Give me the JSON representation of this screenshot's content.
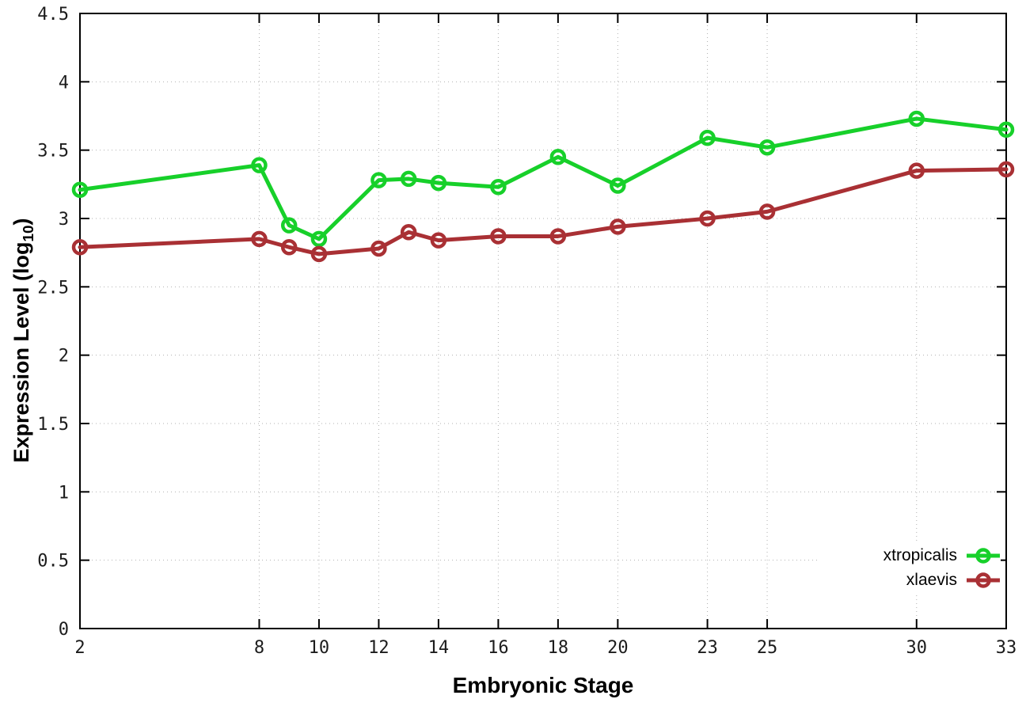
{
  "chart_data": {
    "type": "line",
    "title": "",
    "xlabel": "Embryonic Stage",
    "ylabel_main": "Expression Level (log",
    "ylabel_sub": "10",
    "ylabel_close": ")",
    "x": [
      2,
      8,
      9,
      10,
      12,
      13,
      14,
      16,
      18,
      20,
      23,
      25,
      30,
      33
    ],
    "x_ticks": [
      2,
      8,
      10,
      12,
      14,
      16,
      18,
      20,
      23,
      25,
      30,
      33
    ],
    "y_ticks": [
      0,
      0.5,
      1,
      1.5,
      2,
      2.5,
      3,
      3.5,
      4,
      4.5
    ],
    "xlim": [
      2,
      33
    ],
    "ylim": [
      0,
      4.5
    ],
    "grid": true,
    "legend_position": "bottom-right",
    "series": [
      {
        "name": "xtropicalis",
        "color": "#17d02a",
        "values": [
          3.21,
          3.39,
          2.95,
          2.85,
          3.28,
          3.29,
          3.26,
          3.23,
          3.45,
          3.24,
          3.59,
          3.52,
          3.73,
          3.65
        ]
      },
      {
        "name": "xlaevis",
        "color": "#a93034",
        "values": [
          2.79,
          2.85,
          2.79,
          2.74,
          2.78,
          2.9,
          2.84,
          2.87,
          2.87,
          2.94,
          3.0,
          3.05,
          3.35,
          3.36
        ]
      }
    ],
    "colors": {
      "grid": "#b0b0b0",
      "axis": "#000000",
      "tick_label": "#1c1c1c"
    }
  }
}
